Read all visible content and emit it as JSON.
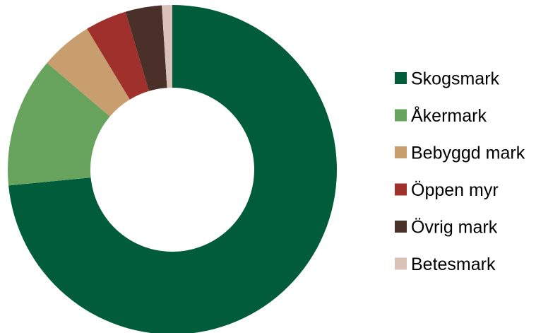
{
  "chart_data": {
    "type": "pie",
    "variant": "donut",
    "title": "",
    "start_angle_deg": 0,
    "direction": "clockwise",
    "legend_placement": "right",
    "slices": [
      {
        "label": "Skogsmark",
        "value": 72.0,
        "color": "#005C3A"
      },
      {
        "label": "Åkermark",
        "value": 12.5,
        "color": "#68A35E"
      },
      {
        "label": "Bebyggd mark",
        "value": 5.0,
        "color": "#C99E6E"
      },
      {
        "label": "Öppen myr",
        "value": 4.0,
        "color": "#A0302C"
      },
      {
        "label": "Övrig mark",
        "value": 3.5,
        "color": "#4A3028"
      },
      {
        "label": "Betesmark",
        "value": 1.0,
        "color": "#D9C3B8"
      }
    ]
  }
}
